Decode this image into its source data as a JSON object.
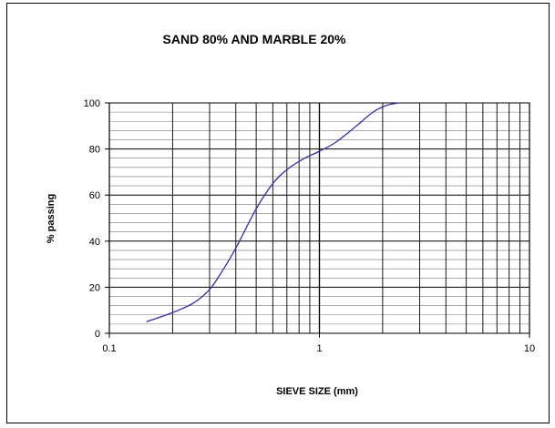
{
  "chart_data": {
    "type": "line",
    "title": "SAND 80% AND MARBLE 20%",
    "xlabel": "SIEVE SIZE (mm)",
    "ylabel": "% passing",
    "x_scale": "log",
    "xlim": [
      0.1,
      10
    ],
    "ylim": [
      0,
      100
    ],
    "x_ticks": [
      0.1,
      1,
      10
    ],
    "x_tick_labels": [
      "0.1",
      "1",
      "10"
    ],
    "y_ticks": [
      0,
      20,
      40,
      60,
      80,
      100
    ],
    "y_tick_labels": [
      "0",
      "20",
      "40",
      "60",
      "80",
      "100"
    ],
    "y_minor_step": 4,
    "grid": true,
    "series": [
      {
        "color": "#3333aa",
        "x": [
          0.15,
          0.2,
          0.25,
          0.3,
          0.35,
          0.4,
          0.5,
          0.6,
          0.7,
          0.85,
          1.0,
          1.2,
          1.5,
          1.8,
          2.1,
          2.4
        ],
        "y": [
          5,
          9,
          13,
          19,
          28,
          37,
          54,
          65,
          71,
          76,
          79,
          83,
          90,
          96,
          99,
          100
        ]
      }
    ]
  }
}
